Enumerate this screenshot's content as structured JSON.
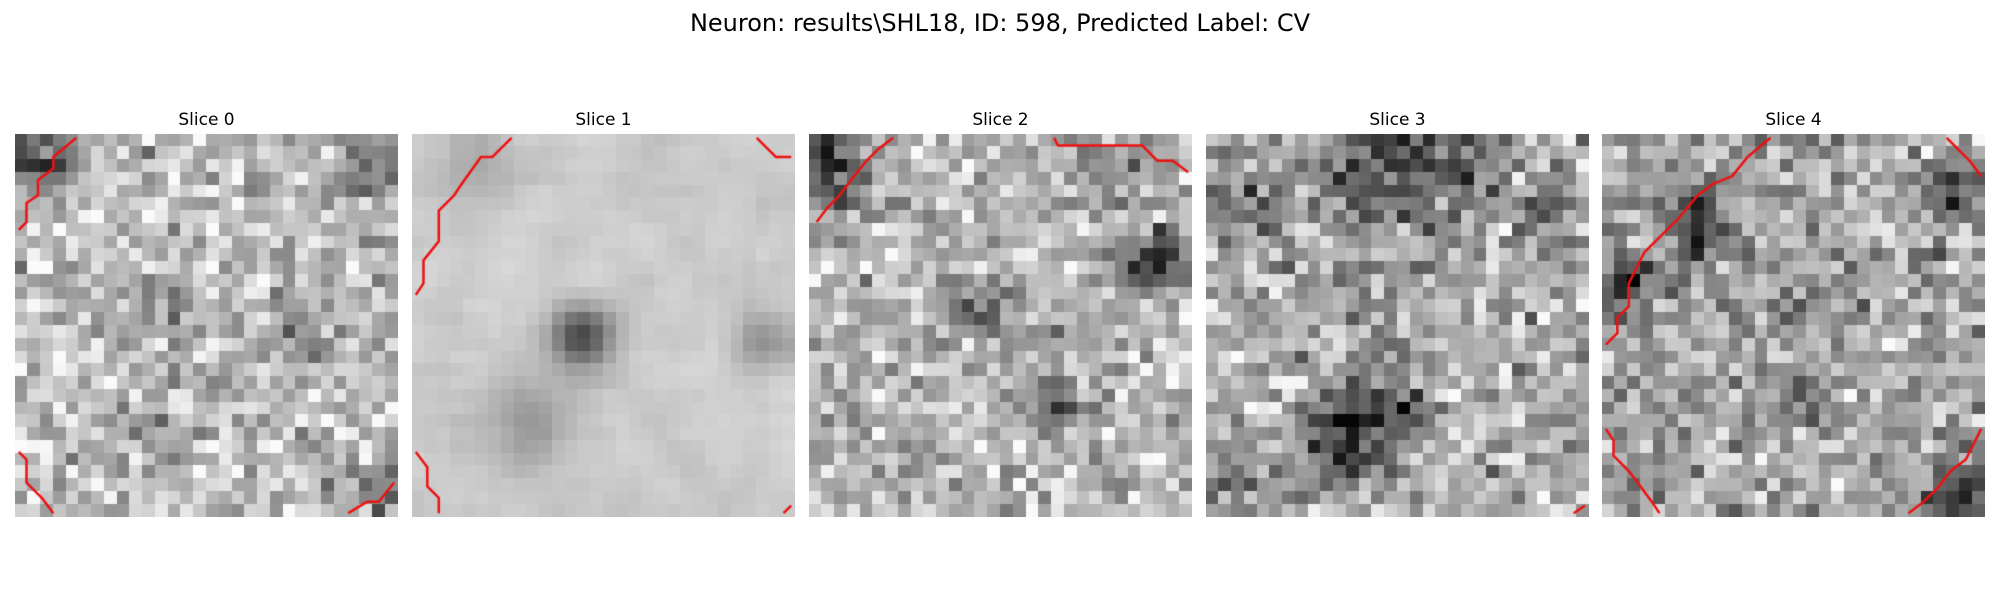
{
  "figure": {
    "title": "Neuron: results\\SHL18, ID: 598, Predicted Label: CV"
  },
  "colors": {
    "contour": "#ee1111",
    "background": "#ffffff"
  },
  "slices": [
    {
      "title": "Slice 0"
    },
    {
      "title": "Slice 1"
    },
    {
      "title": "Slice 2"
    },
    {
      "title": "Slice 3"
    },
    {
      "title": "Slice 4"
    }
  ]
}
